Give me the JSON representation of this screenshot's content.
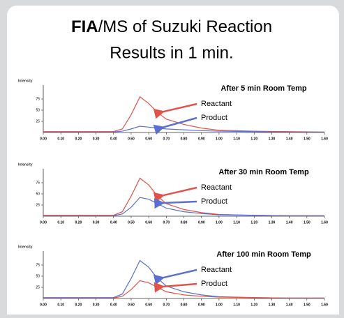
{
  "slide": {
    "title_a": "FIA",
    "title_b": "/MS of Suzuki Reaction",
    "subtitle": "Results in 1 min."
  },
  "chart_data": [
    {
      "type": "line",
      "title": "After 5 min Room Temp",
      "ylabel": "Intensity",
      "x": [
        0,
        0.4,
        0.45,
        0.5,
        0.55,
        0.6,
        0.65,
        0.7,
        0.8,
        0.9,
        1.0,
        1.2,
        1.4,
        1.6
      ],
      "series": [
        {
          "name": "Reactant",
          "color": "#e0524a",
          "values": [
            2,
            2,
            8,
            40,
            80,
            65,
            45,
            30,
            18,
            10,
            5,
            3,
            2,
            1
          ]
        },
        {
          "name": "Product",
          "color": "#5b6fd0",
          "values": [
            1,
            1,
            3,
            8,
            14,
            12,
            10,
            8,
            6,
            4,
            3,
            2,
            1,
            1
          ]
        }
      ],
      "xlim": [
        0,
        1.6
      ],
      "ylim": [
        0,
        100
      ],
      "yticks": [
        25,
        50,
        75
      ],
      "xticks": [
        {
          "value": 0,
          "label": "0.00"
        },
        {
          "value": 0.1,
          "label": "0.10"
        },
        {
          "value": 0.2,
          "label": "0.20"
        },
        {
          "value": 0.3,
          "label": "0.30"
        },
        {
          "value": 0.4,
          "label": "0.40"
        },
        {
          "value": 0.5,
          "label": "0.50"
        },
        {
          "value": 0.6,
          "label": "0.60"
        },
        {
          "value": 0.7,
          "label": "0.70"
        },
        {
          "value": 0.8,
          "label": "0.80"
        },
        {
          "value": 0.9,
          "label": "0.90"
        },
        {
          "value": 1,
          "label": "1.00"
        },
        {
          "value": 1.1,
          "label": "1.10"
        },
        {
          "value": 1.2,
          "label": "1.20"
        },
        {
          "value": 1.3,
          "label": "1.30"
        },
        {
          "value": 1.4,
          "label": "1.40"
        },
        {
          "value": 1.5,
          "label": "1.50"
        },
        {
          "value": 1.6,
          "label": "1.60"
        }
      ]
    },
    {
      "type": "line",
      "title": "After 30 min Room Temp",
      "ylabel": "Intensity",
      "x": [
        0,
        0.4,
        0.45,
        0.5,
        0.55,
        0.6,
        0.65,
        0.7,
        0.8,
        0.9,
        1.0,
        1.2,
        1.4,
        1.6
      ],
      "series": [
        {
          "name": "Reactant",
          "color": "#e0524a",
          "values": [
            2,
            2,
            10,
            45,
            85,
            70,
            45,
            28,
            15,
            8,
            4,
            2,
            1,
            1
          ]
        },
        {
          "name": "Product",
          "color": "#5b6fd0",
          "values": [
            1,
            1,
            5,
            20,
            42,
            38,
            28,
            18,
            10,
            6,
            3,
            2,
            1,
            1
          ]
        }
      ],
      "xlim": [
        0,
        1.6
      ],
      "ylim": [
        0,
        100
      ],
      "yticks": [
        25,
        50,
        75
      ],
      "xticks": [
        {
          "value": 0,
          "label": "0.00"
        },
        {
          "value": 0.1,
          "label": "0.10"
        },
        {
          "value": 0.2,
          "label": "0.20"
        },
        {
          "value": 0.3,
          "label": "0.30"
        },
        {
          "value": 0.4,
          "label": "0.40"
        },
        {
          "value": 0.5,
          "label": "0.50"
        },
        {
          "value": 0.6,
          "label": "0.60"
        },
        {
          "value": 0.7,
          "label": "0.70"
        },
        {
          "value": 0.8,
          "label": "0.80"
        },
        {
          "value": 0.9,
          "label": "0.90"
        },
        {
          "value": 1,
          "label": "1.00"
        },
        {
          "value": 1.1,
          "label": "1.10"
        },
        {
          "value": 1.2,
          "label": "1.20"
        },
        {
          "value": 1.3,
          "label": "1.30"
        },
        {
          "value": 1.4,
          "label": "1.40"
        },
        {
          "value": 1.5,
          "label": "1.50"
        },
        {
          "value": 1.6,
          "label": "1.60"
        }
      ]
    },
    {
      "type": "line",
      "title": "After 100 min Room Temp",
      "ylabel": "Intensity",
      "x": [
        0,
        0.4,
        0.45,
        0.5,
        0.55,
        0.6,
        0.65,
        0.7,
        0.8,
        0.9,
        1.0,
        1.2,
        1.4,
        1.6
      ],
      "series": [
        {
          "name": "Reactant",
          "color": "#5b6fd0",
          "values": [
            2,
            2,
            10,
            45,
            85,
            70,
            45,
            28,
            15,
            8,
            4,
            2,
            1,
            1
          ]
        },
        {
          "name": "Product",
          "color": "#e0524a",
          "values": [
            1,
            1,
            5,
            20,
            40,
            35,
            25,
            15,
            8,
            5,
            3,
            2,
            1,
            1
          ]
        }
      ],
      "xlim": [
        0,
        1.6
      ],
      "ylim": [
        0,
        100
      ],
      "yticks": [
        25,
        50,
        75
      ],
      "xticks": [
        {
          "value": 0,
          "label": "0.00"
        },
        {
          "value": 0.1,
          "label": "0.10"
        },
        {
          "value": 0.2,
          "label": "0.20"
        },
        {
          "value": 0.3,
          "label": "0.30"
        },
        {
          "value": 0.4,
          "label": "0.40"
        },
        {
          "value": 0.5,
          "label": "0.50"
        },
        {
          "value": 0.6,
          "label": "0.60"
        },
        {
          "value": 0.7,
          "label": "0.70"
        },
        {
          "value": 0.8,
          "label": "0.80"
        },
        {
          "value": 0.9,
          "label": "0.90"
        },
        {
          "value": 1,
          "label": "1.00"
        },
        {
          "value": 1.1,
          "label": "1.10"
        },
        {
          "value": 1.2,
          "label": "1.20"
        },
        {
          "value": 1.3,
          "label": "1.30"
        },
        {
          "value": 1.4,
          "label": "1.40"
        },
        {
          "value": 1.5,
          "label": "1.50"
        },
        {
          "value": 1.6,
          "label": "1.60"
        }
      ]
    }
  ]
}
